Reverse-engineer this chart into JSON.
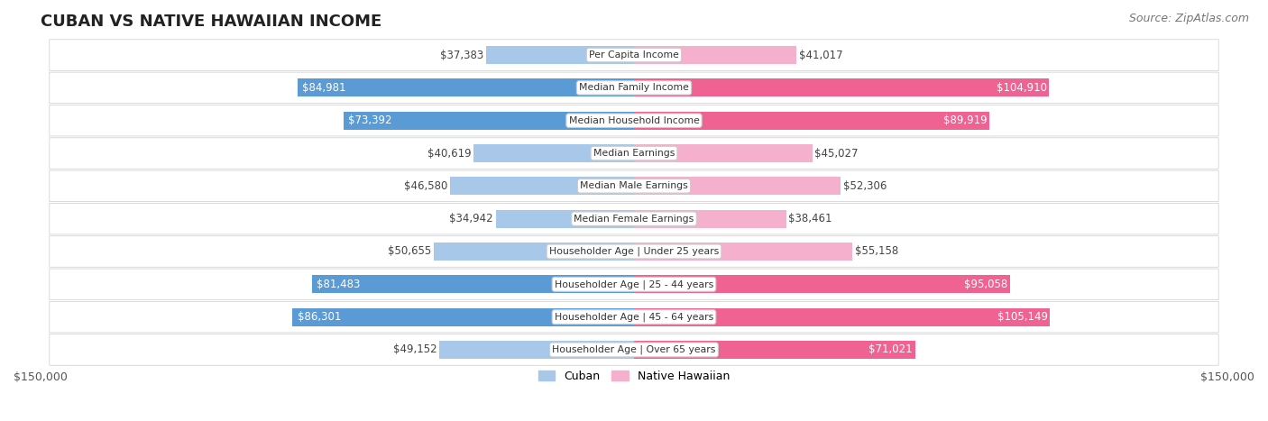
{
  "title": "CUBAN VS NATIVE HAWAIIAN INCOME",
  "source": "Source: ZipAtlas.com",
  "categories": [
    "Per Capita Income",
    "Median Family Income",
    "Median Household Income",
    "Median Earnings",
    "Median Male Earnings",
    "Median Female Earnings",
    "Householder Age | Under 25 years",
    "Householder Age | 25 - 44 years",
    "Householder Age | 45 - 64 years",
    "Householder Age | Over 65 years"
  ],
  "cuban_values": [
    37383,
    84981,
    73392,
    40619,
    46580,
    34942,
    50655,
    81483,
    86301,
    49152
  ],
  "hawaiian_values": [
    41017,
    104910,
    89919,
    45027,
    52306,
    38461,
    55158,
    95058,
    105149,
    71021
  ],
  "cuban_labels": [
    "$37,383",
    "$84,981",
    "$73,392",
    "$40,619",
    "$46,580",
    "$34,942",
    "$50,655",
    "$81,483",
    "$86,301",
    "$49,152"
  ],
  "hawaiian_labels": [
    "$41,017",
    "$104,910",
    "$89,919",
    "$45,027",
    "$52,306",
    "$38,461",
    "$55,158",
    "$95,058",
    "$105,149",
    "$71,021"
  ],
  "cuban_color_light": "#a8c8ea",
  "cuban_color_dark": "#5b9bd5",
  "hawaiian_color_light": "#f4b0cc",
  "hawaiian_color_dark": "#f06292",
  "max_value": 150000,
  "x_label_left": "$150,000",
  "x_label_right": "$150,000",
  "large_threshold": 60000,
  "bar_height": 0.55,
  "title_fontsize": 13,
  "label_fontsize": 8.5,
  "source_fontsize": 9,
  "cat_label_fontsize": 7.8
}
